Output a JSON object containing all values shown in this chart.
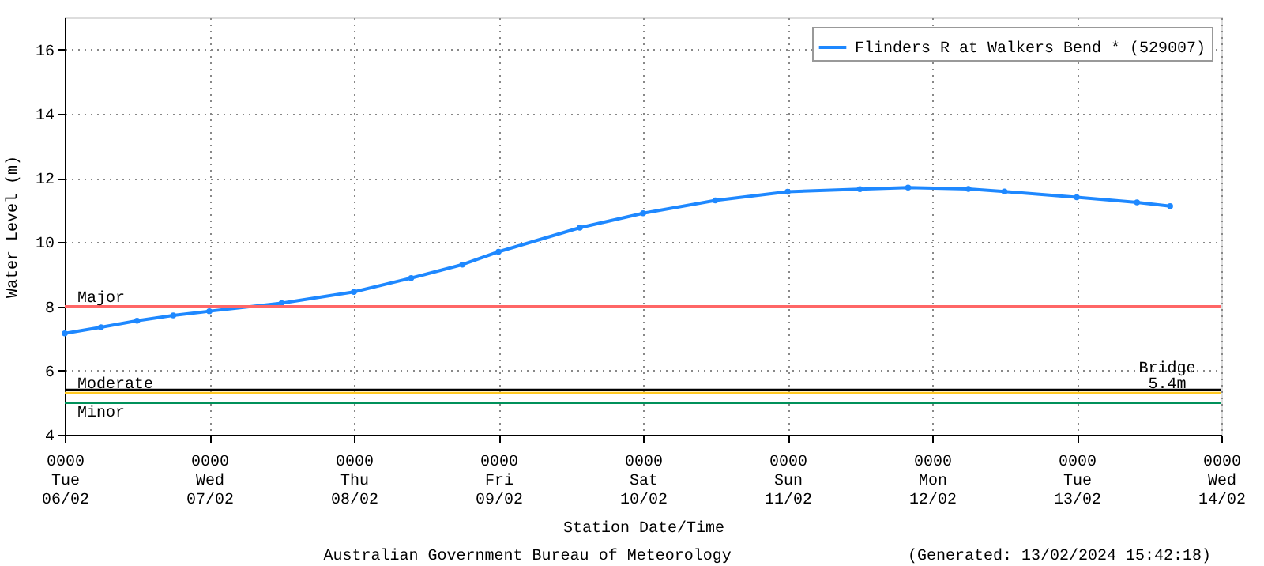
{
  "chart_data": {
    "type": "line",
    "xlabel": "Station Date/Time",
    "ylabel": "Water Level (m)",
    "x": [
      "2024-02-06T00:00",
      "2024-02-06T06:00",
      "2024-02-06T12:00",
      "2024-02-06T18:00",
      "2024-02-07T00:00",
      "2024-02-07T12:00",
      "2024-02-08T00:00",
      "2024-02-08T09:30",
      "2024-02-08T18:00",
      "2024-02-09T00:00",
      "2024-02-09T13:30",
      "2024-02-10T00:00",
      "2024-02-10T12:00",
      "2024-02-11T00:00",
      "2024-02-11T12:00",
      "2024-02-11T20:00",
      "2024-02-12T06:00",
      "2024-02-12T12:00",
      "2024-02-13T00:00",
      "2024-02-13T10:00",
      "2024-02-13T15:30"
    ],
    "series": [
      {
        "name": "Flinders R at Walkers Bend * (529007)",
        "color": "#1e88ff",
        "values": [
          7.16,
          7.35,
          7.55,
          7.72,
          7.85,
          8.1,
          8.45,
          8.88,
          9.3,
          9.7,
          10.45,
          10.9,
          11.3,
          11.57,
          11.65,
          11.7,
          11.66,
          11.58,
          11.4,
          11.24,
          11.12
        ]
      }
    ],
    "xlim": [
      "2024-02-06T00:00",
      "2024-02-14T00:00"
    ],
    "xticks": [
      {
        "value": "2024-02-06T00:00",
        "label": "0000\nTue\n06/02"
      },
      {
        "value": "2024-02-07T00:00",
        "label": "0000\nWed\n07/02"
      },
      {
        "value": "2024-02-08T00:00",
        "label": "0000\nThu\n08/02"
      },
      {
        "value": "2024-02-09T00:00",
        "label": "0000\nFri\n09/02"
      },
      {
        "value": "2024-02-10T00:00",
        "label": "0000\nSat\n10/02"
      },
      {
        "value": "2024-02-11T00:00",
        "label": "0000\nSun\n11/02"
      },
      {
        "value": "2024-02-12T00:00",
        "label": "0000\nMon\n12/02"
      },
      {
        "value": "2024-02-13T00:00",
        "label": "0000\nTue\n13/02"
      },
      {
        "value": "2024-02-14T00:00",
        "label": "0000\nWed\n14/02"
      }
    ],
    "ylim": [
      4,
      17
    ],
    "yticks": [
      4,
      6,
      8,
      10,
      12,
      14,
      16
    ],
    "ref_lines": [
      {
        "axis": "y",
        "value": 8,
        "label": "Major",
        "color": "#ff6666"
      },
      {
        "axis": "y",
        "value": 5.4,
        "label": null,
        "color": "#000000"
      },
      {
        "axis": "y",
        "value": 5.3,
        "label": "Moderate",
        "color": "#ffc820"
      },
      {
        "axis": "y",
        "value": 5.0,
        "label": "Minor",
        "color": "#00915a"
      }
    ],
    "annotations": [
      {
        "text": "Bridge\n5.4m",
        "x": "2024-02-13T15:00",
        "y": 5.4
      },
      "Australian Government Bureau of Meteorology",
      "(Generated: 13/02/2024 15:42:18)"
    ],
    "grid": true,
    "legend": "top right",
    "marker": "circle",
    "line_style": "solid"
  }
}
